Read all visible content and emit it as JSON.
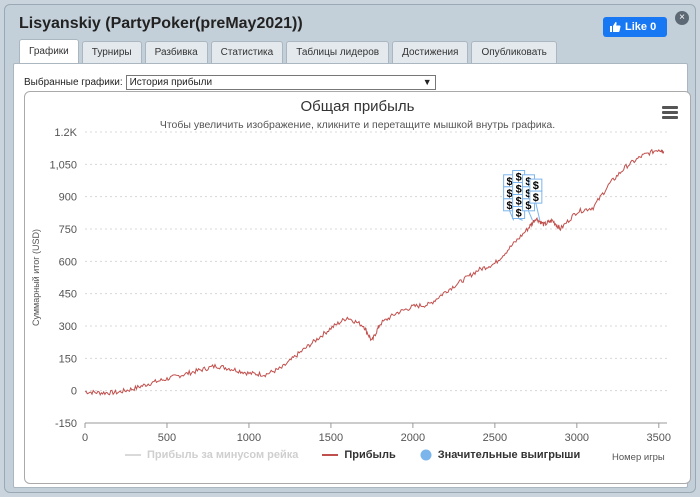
{
  "window": {
    "title": "Lisyanskiy (PartyPoker(preMay2021))",
    "close": "×"
  },
  "like": {
    "label": "Like 0"
  },
  "tabs": [
    "Графики",
    "Турниры",
    "Разбивка",
    "Статистика",
    "Таблицы лидеров",
    "Достижения",
    "Опубликовать"
  ],
  "selector": {
    "label": "Выбранные графики:",
    "value": "История прибыли"
  },
  "colors": {
    "profit_line": "#c0504d",
    "rake_line": "#d9d9d9",
    "marker": "#7cb5ec",
    "accent": "#1877f2"
  },
  "chart_data": {
    "type": "line",
    "title": "Общая прибыль",
    "subtitle": "Чтобы увеличить изображение, кликните и перетащите мышкой внутрь графика.",
    "ylabel": "Суммарный итог (USD)",
    "xlabel": "Номер игры",
    "xlim": [
      0,
      3550
    ],
    "ylim": [
      -150,
      1200
    ],
    "x_ticks": [
      0,
      500,
      1000,
      1500,
      2000,
      2500,
      3000,
      3500
    ],
    "y_ticks": [
      -150,
      0,
      150,
      300,
      450,
      600,
      750,
      900,
      1050,
      1200
    ],
    "y_tick_labels": [
      "-150",
      "0",
      "150",
      "300",
      "450",
      "600",
      "750",
      "900",
      "1,050",
      "1.2K"
    ],
    "x_tick_labels": [
      "0",
      "500",
      "1000",
      "1500",
      "2000",
      "2500",
      "3000",
      "3500"
    ],
    "legend": [
      {
        "name": "Прибыль за минусом рейка",
        "visible": false
      },
      {
        "name": "Прибыль",
        "visible": true
      },
      {
        "name": "Значительные выигрыши",
        "visible": true
      }
    ],
    "series": [
      {
        "name": "Прибыль",
        "x": [
          0,
          100,
          200,
          300,
          400,
          500,
          600,
          700,
          800,
          900,
          1000,
          1100,
          1200,
          1300,
          1400,
          1500,
          1600,
          1700,
          1750,
          1800,
          1900,
          2000,
          2100,
          2200,
          2300,
          2400,
          2500,
          2600,
          2700,
          2750,
          2800,
          2850,
          2900,
          3000,
          3100,
          3200,
          3300,
          3400,
          3500,
          3530
        ],
        "y": [
          -5,
          -10,
          -8,
          10,
          35,
          55,
          75,
          95,
          115,
          100,
          80,
          75,
          105,
          170,
          230,
          290,
          340,
          300,
          230,
          310,
          360,
          390,
          400,
          460,
          510,
          560,
          590,
          670,
          750,
          800,
          770,
          790,
          750,
          830,
          850,
          960,
          1040,
          1090,
          1120,
          1110
        ]
      }
    ],
    "big_wins": {
      "count": 11,
      "marker_label": "$",
      "x_range": [
        2590,
        2750
      ]
    }
  }
}
